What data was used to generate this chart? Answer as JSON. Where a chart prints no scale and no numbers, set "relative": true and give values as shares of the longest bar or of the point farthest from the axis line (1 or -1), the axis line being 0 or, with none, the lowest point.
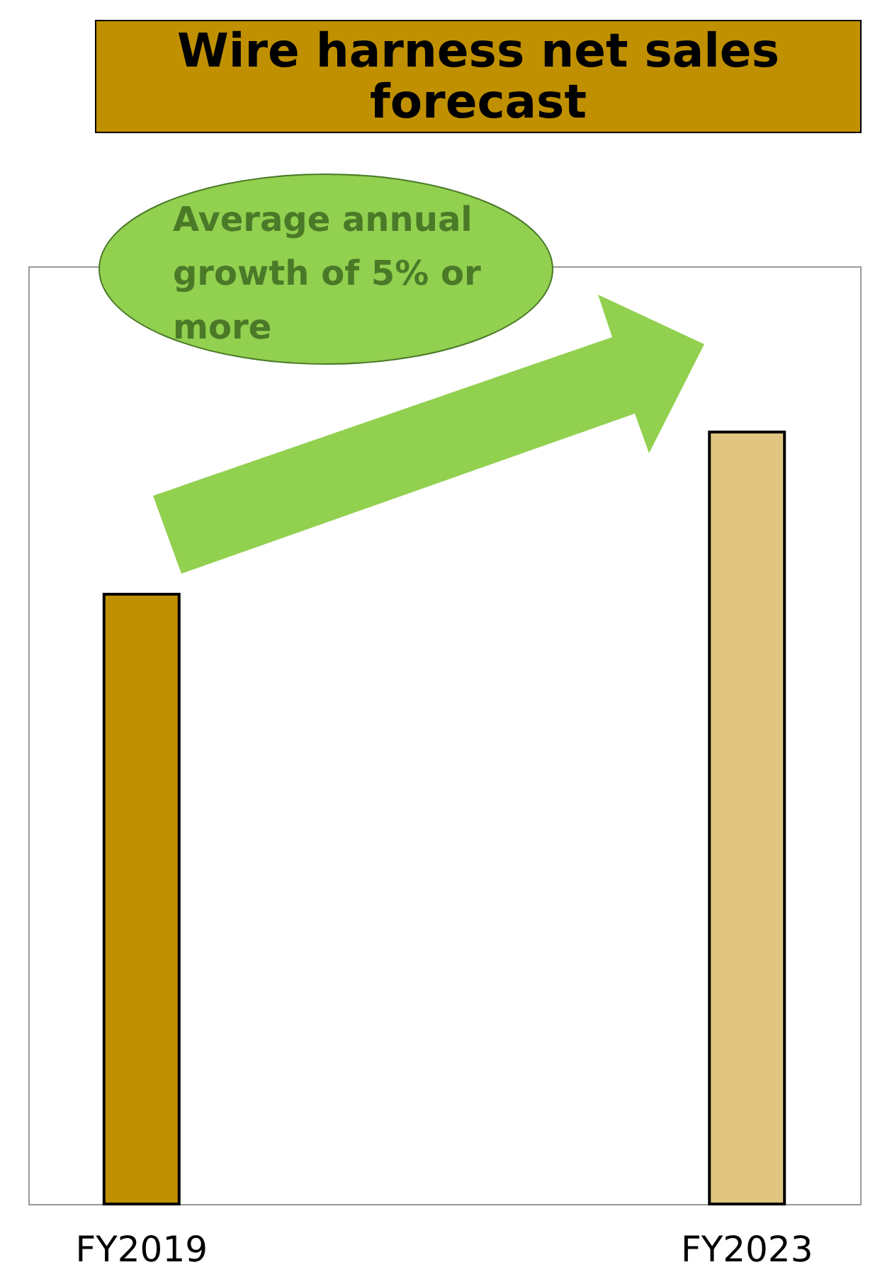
{
  "chart_data": {
    "type": "bar",
    "title": "Wire harness net sales forecast",
    "relative": true,
    "categories": [
      "FY2019",
      "FY2023"
    ],
    "values": [
      0.79,
      1
    ],
    "colors": [
      "#c09000",
      "#e0c680"
    ],
    "annotations": [
      "Average annual growth of 5% or more"
    ]
  }
}
